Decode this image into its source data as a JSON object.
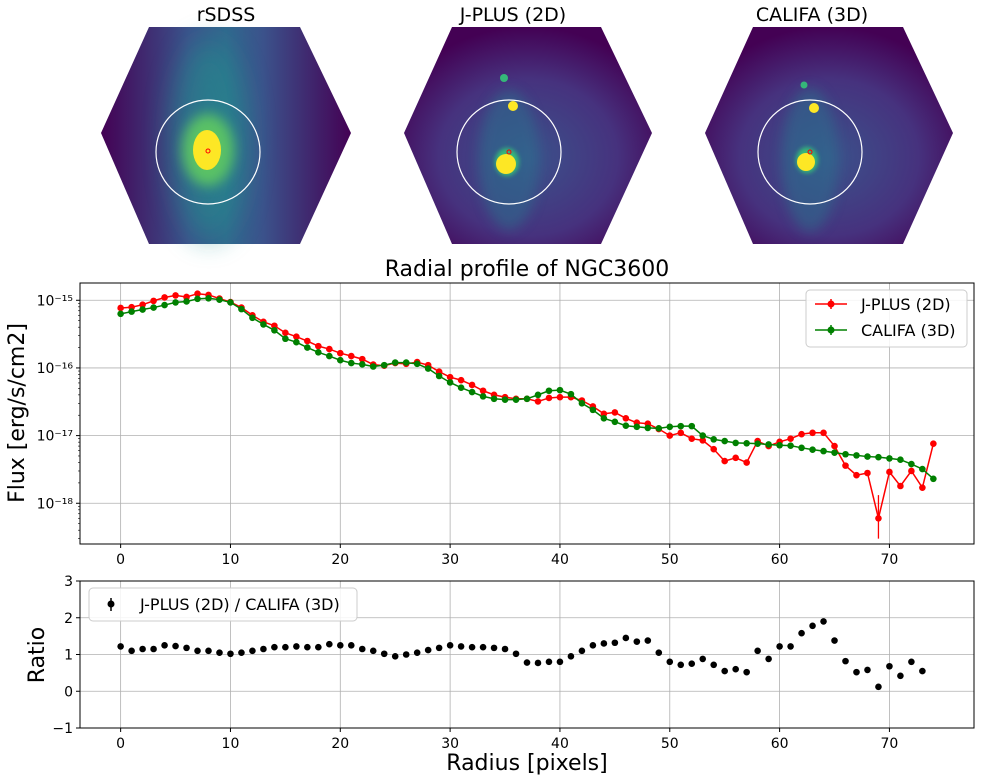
{
  "panels": [
    {
      "title": "rSDSS",
      "style": "smooth"
    },
    {
      "title": "J-PLUS (2D)",
      "style": "noisy"
    },
    {
      "title": "CALIFA (3D)",
      "style": "noisy"
    }
  ],
  "colors": {
    "jplus": "#ff0000",
    "califa": "#008000",
    "ratio": "#000000",
    "grid": "#b0b0b0",
    "panel_bg": "#440154",
    "panel_mid": "#31688e",
    "panel_core": "#fde725"
  },
  "chart_data": [
    {
      "type": "line",
      "title": "Radial profile of NGC3600",
      "xlabel": "",
      "ylabel": "Flux [erg/s/cm2]",
      "yscale": "log",
      "xlim": [
        -3.7,
        77.7
      ],
      "ylim": [
        2.5e-19,
        1.8e-15
      ],
      "xticks": [
        0,
        10,
        20,
        30,
        40,
        50,
        60,
        70
      ],
      "yticks": [
        {
          "value": 1e-18,
          "label": "10⁻¹⁸"
        },
        {
          "value": 1e-17,
          "label": "10⁻¹⁷"
        },
        {
          "value": 1e-16,
          "label": "10⁻¹⁶"
        },
        {
          "value": 1e-15,
          "label": "10⁻¹⁵"
        }
      ],
      "grid": true,
      "legend": "top-right",
      "series": [
        {
          "name": "J-PLUS (2D)",
          "color": "#ff0000",
          "x": [
            0,
            1,
            2,
            3,
            4,
            5,
            6,
            7,
            8,
            9,
            10,
            11,
            12,
            13,
            14,
            15,
            16,
            17,
            18,
            19,
            20,
            21,
            22,
            23,
            24,
            25,
            26,
            27,
            28,
            29,
            30,
            31,
            32,
            33,
            34,
            35,
            36,
            37,
            38,
            39,
            40,
            41,
            42,
            43,
            44,
            45,
            46,
            47,
            48,
            49,
            50,
            51,
            52,
            53,
            54,
            55,
            56,
            57,
            58,
            59,
            60,
            61,
            62,
            63,
            64,
            65,
            66,
            67,
            68,
            69,
            70,
            71,
            72,
            73,
            74
          ],
          "y": [
            7.7e-16,
            7.9e-16,
            8.6e-16,
            9.8e-16,
            1.1e-15,
            1.18e-15,
            1.12e-15,
            1.25e-15,
            1.2e-15,
            1.06e-15,
            9.4e-16,
            7.8e-16,
            6e-16,
            4.8e-16,
            4.2e-16,
            3.3e-16,
            2.9e-16,
            2.5e-16,
            2.1e-16,
            1.9e-16,
            1.65e-16,
            1.5e-16,
            1.35e-16,
            1.12e-16,
            1.08e-16,
            1.18e-16,
            1.15e-16,
            1.22e-16,
            1.1e-16,
            8.8e-17,
            7.3e-17,
            6.6e-17,
            5.6e-17,
            4.6e-17,
            4e-17,
            3.7e-17,
            3.5e-17,
            3.5e-17,
            3.2e-17,
            3.6e-17,
            3.7e-17,
            3.7e-17,
            3.3e-17,
            2.7e-17,
            2.1e-17,
            2.2e-17,
            1.8e-17,
            1.55e-17,
            1.5e-17,
            1.25e-17,
            1e-17,
            1.1e-17,
            9e-18,
            8.5e-18,
            6.3e-18,
            4.2e-18,
            4.7e-18,
            4e-18,
            8.3e-18,
            7e-18,
            8.1e-18,
            9e-18,
            1.05e-17,
            1.1e-17,
            1.1e-17,
            7e-18,
            3.6e-18,
            2.6e-18,
            2.8e-18,
            6e-19,
            2.9e-18,
            1.8e-18,
            3e-18,
            1.7e-18,
            7.6e-18
          ]
        },
        {
          "name": "CALIFA (3D)",
          "color": "#008000",
          "x": [
            0,
            1,
            2,
            3,
            4,
            5,
            6,
            7,
            8,
            9,
            10,
            11,
            12,
            13,
            14,
            15,
            16,
            17,
            18,
            19,
            20,
            21,
            22,
            23,
            24,
            25,
            26,
            27,
            28,
            29,
            30,
            31,
            32,
            33,
            34,
            35,
            36,
            37,
            38,
            39,
            40,
            41,
            42,
            43,
            44,
            45,
            46,
            47,
            48,
            49,
            50,
            51,
            52,
            53,
            54,
            55,
            56,
            57,
            58,
            59,
            60,
            61,
            62,
            63,
            64,
            65,
            66,
            67,
            68,
            69,
            70,
            71,
            72,
            73,
            74
          ],
          "y": [
            6.3e-16,
            6.8e-16,
            7.3e-16,
            7.8e-16,
            8.5e-16,
            9.3e-16,
            9.6e-16,
            1.05e-15,
            1.07e-15,
            1.02e-15,
            9.3e-16,
            7.4e-16,
            5.5e-16,
            4.4e-16,
            3.6e-16,
            2.7e-16,
            2.4e-16,
            2e-16,
            1.7e-16,
            1.5e-16,
            1.3e-16,
            1.18e-16,
            1.13e-16,
            1.05e-16,
            1.1e-16,
            1.2e-16,
            1.2e-16,
            1.15e-16,
            9.8e-17,
            7.6e-17,
            6.1e-17,
            5.1e-17,
            4.4e-17,
            3.8e-17,
            3.5e-17,
            3.4e-17,
            3.4e-17,
            3.5e-17,
            4e-17,
            4.6e-17,
            4.7e-17,
            4.1e-17,
            3e-17,
            2.4e-17,
            1.8e-17,
            1.6e-17,
            1.4e-17,
            1.35e-17,
            1.3e-17,
            1.28e-17,
            1.35e-17,
            1.38e-17,
            1.38e-17,
            1e-17,
            8.8e-18,
            8.3e-18,
            7.8e-18,
            7.7e-18,
            7.6e-18,
            7.4e-18,
            7.2e-18,
            7.1e-18,
            6.6e-18,
            6.2e-18,
            5.9e-18,
            5.6e-18,
            5.3e-18,
            5.1e-18,
            4.9e-18,
            4.8e-18,
            4.6e-18,
            4.4e-18,
            3.8e-18,
            3.2e-18,
            2.3e-18
          ]
        }
      ]
    },
    {
      "type": "scatter",
      "title": "",
      "xlabel": "Radius [pixels]",
      "ylabel": "Ratio",
      "xlim": [
        -3.7,
        77.7
      ],
      "ylim": [
        -1,
        3
      ],
      "xticks": [
        0,
        10,
        20,
        30,
        40,
        50,
        60,
        70
      ],
      "yticks": [
        -1,
        0,
        1,
        2,
        3
      ],
      "grid": true,
      "legend": "top-left",
      "series": [
        {
          "name": "J-PLUS (2D) / CALIFA (3D)",
          "color": "#000000",
          "x": [
            0,
            1,
            2,
            3,
            4,
            5,
            6,
            7,
            8,
            9,
            10,
            11,
            12,
            13,
            14,
            15,
            16,
            17,
            18,
            19,
            20,
            21,
            22,
            23,
            24,
            25,
            26,
            27,
            28,
            29,
            30,
            31,
            32,
            33,
            34,
            35,
            36,
            37,
            38,
            39,
            40,
            41,
            42,
            43,
            44,
            45,
            46,
            47,
            48,
            49,
            50,
            51,
            52,
            53,
            54,
            55,
            56,
            57,
            58,
            59,
            60,
            61,
            62,
            63,
            64,
            65,
            66,
            67,
            68,
            69,
            70,
            71,
            72,
            73
          ],
          "y": [
            1.22,
            1.1,
            1.15,
            1.15,
            1.25,
            1.23,
            1.18,
            1.1,
            1.1,
            1.05,
            1.02,
            1.05,
            1.1,
            1.15,
            1.2,
            1.2,
            1.22,
            1.2,
            1.2,
            1.28,
            1.25,
            1.25,
            1.15,
            1.1,
            1.02,
            0.95,
            1.0,
            1.05,
            1.12,
            1.18,
            1.25,
            1.22,
            1.2,
            1.2,
            1.18,
            1.15,
            1.02,
            0.78,
            0.77,
            0.8,
            0.8,
            0.95,
            1.1,
            1.25,
            1.3,
            1.32,
            1.45,
            1.35,
            1.38,
            1.05,
            0.8,
            0.72,
            0.75,
            0.88,
            0.72,
            0.55,
            0.6,
            0.52,
            1.1,
            0.88,
            1.22,
            1.22,
            1.58,
            1.78,
            1.9,
            1.38,
            0.82,
            0.52,
            0.58,
            0.12,
            0.68,
            0.42,
            0.8,
            0.55
          ]
        }
      ]
    }
  ]
}
